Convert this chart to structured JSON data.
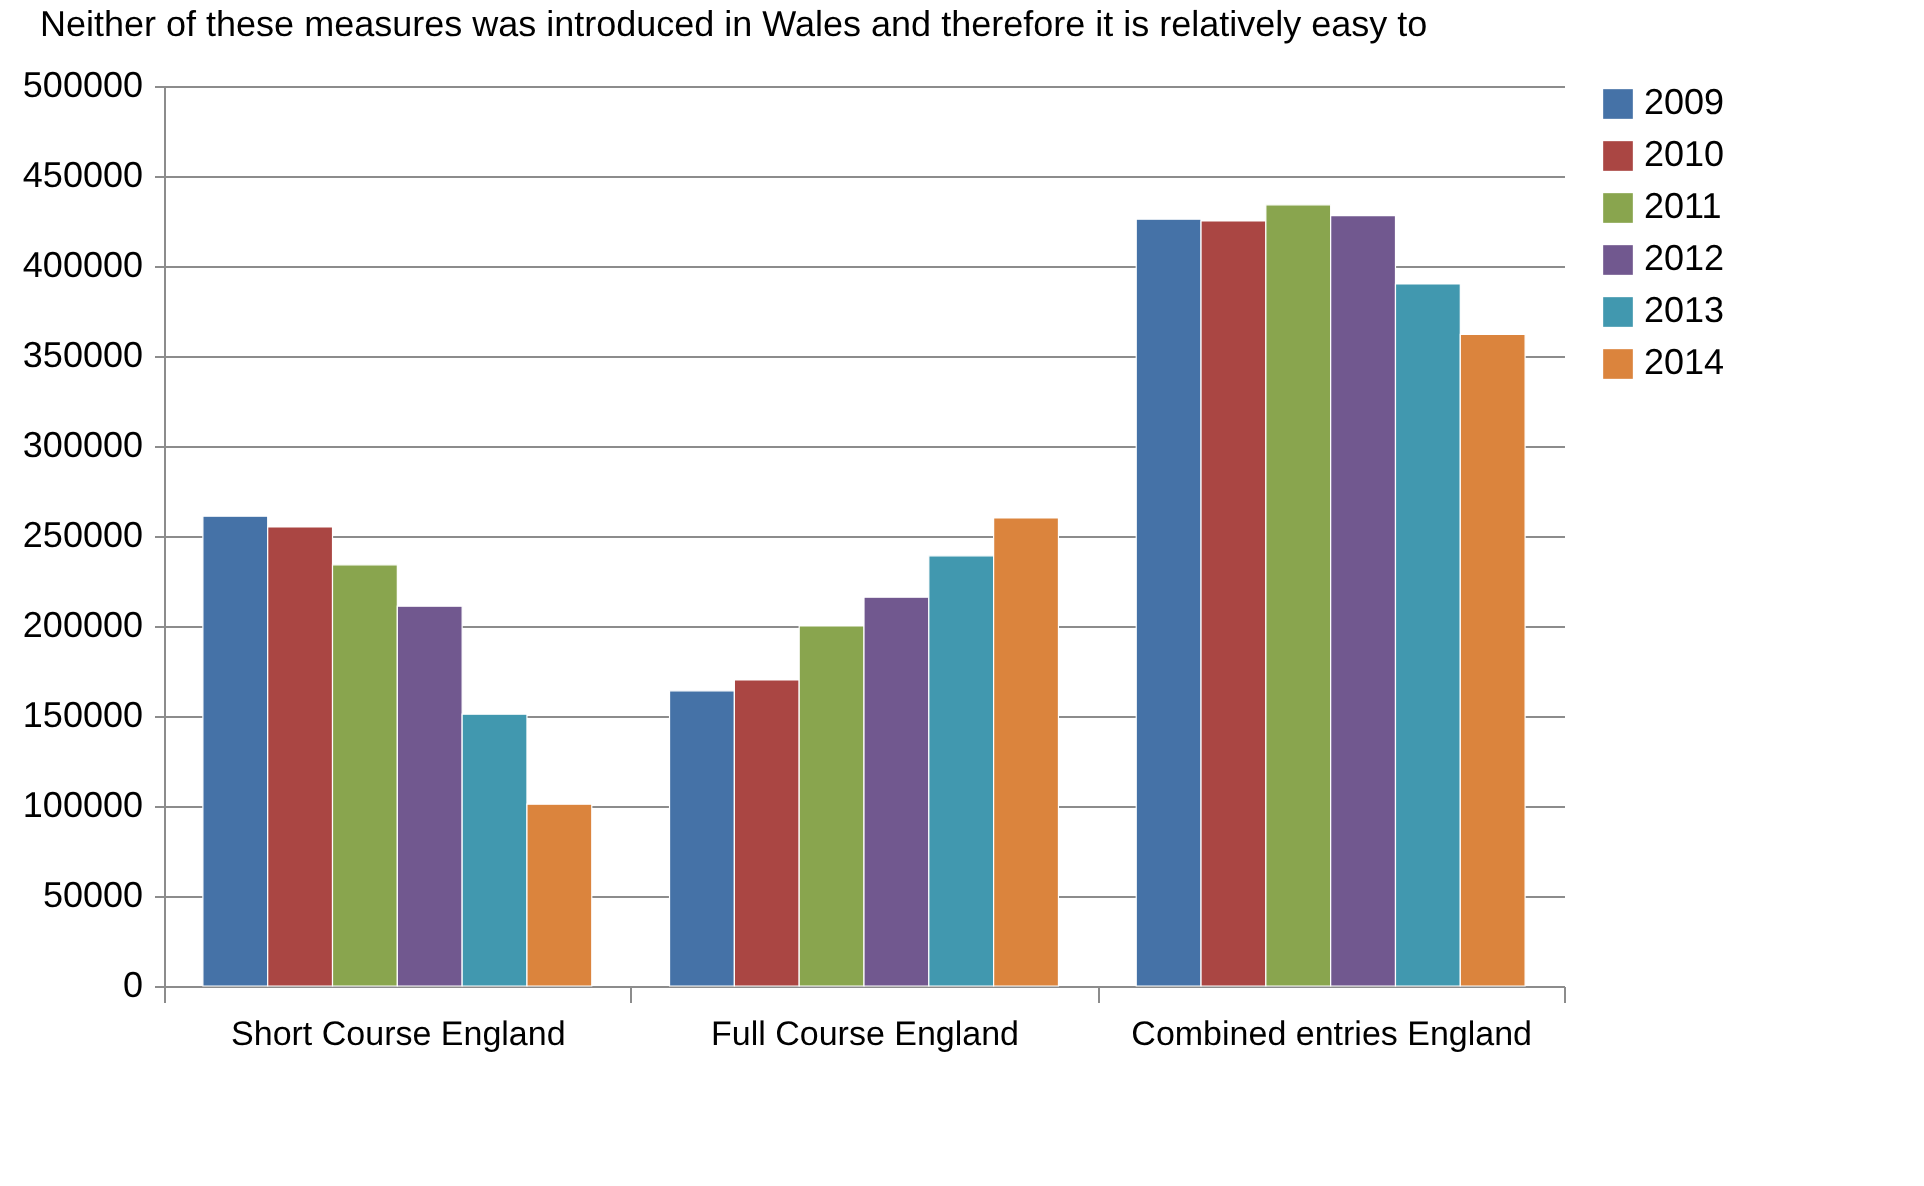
{
  "chart_data": {
    "type": "bar",
    "annotations": [
      "Neither of these measures was introduced in Wales and therefore it is relatively easy to"
    ],
    "categories": [
      "Short Course England",
      "Full Course England",
      "Combined entries England"
    ],
    "series": [
      {
        "name": "2009",
        "color": "#4572a7",
        "values": [
          261000,
          164000,
          426000
        ]
      },
      {
        "name": "2010",
        "color": "#aa4643",
        "values": [
          255000,
          170000,
          425000
        ]
      },
      {
        "name": "2011",
        "color": "#89a54e",
        "values": [
          234000,
          200000,
          434000
        ]
      },
      {
        "name": "2012",
        "color": "#71588f",
        "values": [
          211000,
          216000,
          428000
        ]
      },
      {
        "name": "2013",
        "color": "#4198af",
        "values": [
          151000,
          239000,
          390000
        ]
      },
      {
        "name": "2014",
        "color": "#db843d",
        "values": [
          101000,
          260000,
          362000
        ]
      }
    ],
    "ylim": [
      0,
      500000
    ],
    "yticks": [
      0,
      50000,
      100000,
      150000,
      200000,
      250000,
      300000,
      350000,
      400000,
      450000,
      500000
    ],
    "grid": "y",
    "legend": "right"
  }
}
